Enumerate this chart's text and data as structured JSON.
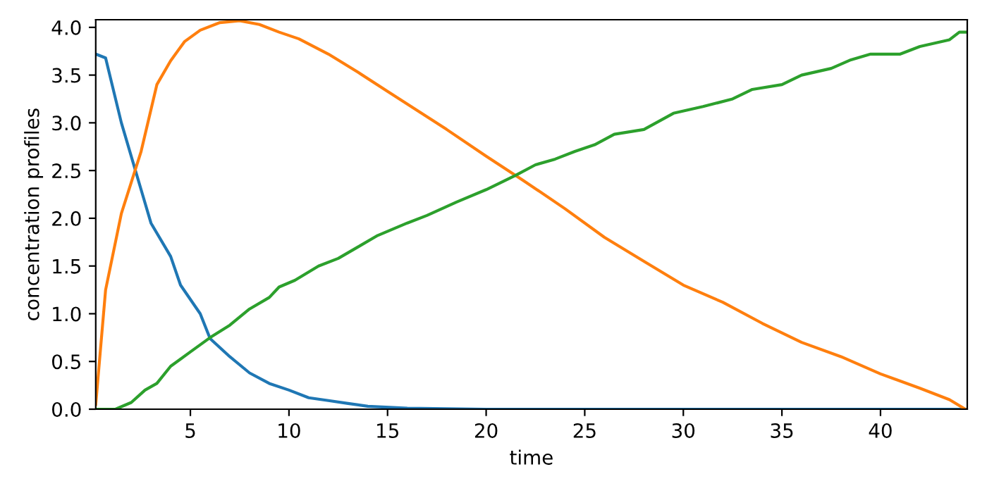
{
  "chart_data": {
    "type": "line",
    "xlabel": "time",
    "ylabel": "concentration profiles",
    "xlim": [
      0.2,
      44.4
    ],
    "ylim": [
      0,
      4.08
    ],
    "xticks": [
      5,
      10,
      15,
      20,
      25,
      30,
      35,
      40
    ],
    "yticks": [
      {
        "value": 0,
        "label": "0.0"
      },
      0.5,
      {
        "value": 1,
        "label": "1.0"
      },
      1.5,
      {
        "value": 2,
        "label": "2.0"
      },
      2.5,
      {
        "value": 3,
        "label": "3.0"
      },
      3.5,
      {
        "value": 4,
        "label": "4.0"
      }
    ],
    "grid": false,
    "legend": false,
    "series": [
      {
        "color": "#1f77b4",
        "x": [
          0.2,
          0.7,
          1.5,
          2.5,
          3,
          4,
          4.5,
          5.5,
          6,
          7,
          8,
          9,
          10,
          11,
          12,
          13,
          14,
          16,
          20,
          30,
          44.4
        ],
        "values": [
          3.72,
          3.68,
          3.0,
          2.3,
          1.95,
          1.6,
          1.3,
          1.0,
          0.74,
          0.55,
          0.38,
          0.27,
          0.2,
          0.12,
          0.09,
          0.06,
          0.03,
          0.01,
          0,
          0,
          0
        ]
      },
      {
        "color": "#ff7f0e",
        "x": [
          0.2,
          0.7,
          1.5,
          2.5,
          3.3,
          4,
          4.7,
          5.5,
          6.5,
          7.5,
          8.5,
          9.5,
          10.5,
          12,
          13.5,
          15,
          16.5,
          18,
          20,
          22,
          24,
          26,
          28,
          30,
          32,
          34,
          36,
          38,
          40,
          42,
          43.5,
          44.3
        ],
        "values": [
          0.05,
          1.25,
          2.05,
          2.7,
          3.4,
          3.65,
          3.85,
          3.97,
          4.05,
          4.07,
          4.03,
          3.95,
          3.88,
          3.72,
          3.53,
          3.33,
          3.13,
          2.93,
          2.65,
          2.38,
          2.1,
          1.8,
          1.55,
          1.3,
          1.12,
          0.9,
          0.7,
          0.55,
          0.37,
          0.22,
          0.1,
          0.0
        ]
      },
      {
        "color": "#2ca02c",
        "x": [
          0.2,
          1.2,
          2,
          2.7,
          3.3,
          4,
          5,
          6,
          7,
          8,
          9,
          9.5,
          10.3,
          11.5,
          12.5,
          13.5,
          14.5,
          16,
          17,
          18.5,
          20,
          21.5,
          22.5,
          23.5,
          24.5,
          25.5,
          26.5,
          28,
          29.5,
          31,
          32.5,
          33.5,
          35,
          36,
          37.5,
          38.5,
          39.5,
          41,
          42,
          43.5,
          44,
          44.4
        ],
        "values": [
          0,
          0,
          0.07,
          0.2,
          0.27,
          0.45,
          0.6,
          0.75,
          0.88,
          1.05,
          1.17,
          1.28,
          1.35,
          1.5,
          1.58,
          1.7,
          1.82,
          1.95,
          2.03,
          2.17,
          2.3,
          2.45,
          2.56,
          2.62,
          2.7,
          2.77,
          2.88,
          2.93,
          3.1,
          3.17,
          3.25,
          3.35,
          3.4,
          3.5,
          3.57,
          3.66,
          3.72,
          3.72,
          3.8,
          3.87,
          3.95,
          3.95
        ]
      }
    ]
  }
}
